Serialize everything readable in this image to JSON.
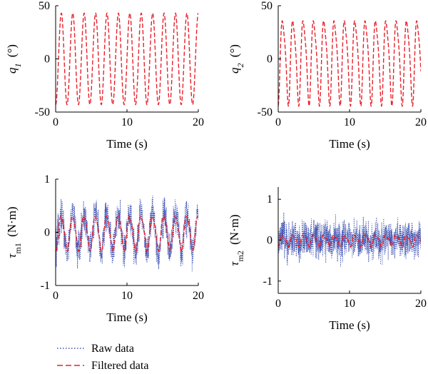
{
  "chart_data": [
    {
      "type": "line",
      "ylabel": {
        "symbol": "q",
        "sub": "1",
        "unit": "(°)"
      },
      "xlabel": "Time (s)",
      "xlim": [
        0,
        20
      ],
      "ylim": [
        -50,
        50
      ],
      "xticks": [
        0,
        10,
        20
      ],
      "yticks": [
        -50,
        0,
        50
      ],
      "series": [
        {
          "name": "Filtered data",
          "kind": "sine",
          "amplitude": 43,
          "period": 1.6,
          "phase_s": 0.4,
          "harmonic2": 0,
          "color": "#e8202a",
          "style": "dashed"
        }
      ]
    },
    {
      "type": "line",
      "ylabel": {
        "symbol": "q",
        "sub": "2",
        "unit": "(°)"
      },
      "xlabel": "Time (s)",
      "xlim": [
        0,
        20
      ],
      "ylim": [
        -50,
        50
      ],
      "xticks": [
        0,
        10,
        20
      ],
      "yticks": [
        -50,
        0,
        50
      ],
      "series": [
        {
          "name": "Filtered data",
          "kind": "sine",
          "amplitude": 38,
          "period": 1.45,
          "phase_s": 0.3,
          "harmonic2": 8,
          "color": "#e8202a",
          "style": "dashed"
        }
      ]
    },
    {
      "type": "line",
      "ylabel": {
        "symbol": "τ",
        "sub": "m1",
        "unit": "(N·m)"
      },
      "xlabel": "Time (s)",
      "xlim": [
        0,
        20
      ],
      "ylim": [
        -1,
        1
      ],
      "xticks": [
        0,
        10,
        20
      ],
      "yticks": [
        -1,
        0,
        1
      ],
      "series": [
        {
          "name": "Raw data",
          "kind": "noisy",
          "amplitude": 0.35,
          "period": 1.6,
          "phase_s": 0.4,
          "noise": 0.32,
          "samples": 900,
          "color": "#3b4fb0",
          "style": "dotted"
        },
        {
          "name": "Filtered data",
          "kind": "sine",
          "amplitude": 0.32,
          "period": 1.6,
          "phase_s": 0.4,
          "harmonic2": 0.05,
          "color": "#e8202a",
          "style": "dashed"
        }
      ]
    },
    {
      "type": "line",
      "ylabel": {
        "symbol": "τ",
        "sub": "m2",
        "unit": "(N·m)"
      },
      "xlabel": "Time (s)",
      "xlim": [
        0,
        20
      ],
      "ylim": [
        -1.3,
        1.3
      ],
      "xticks": [
        0,
        10,
        20
      ],
      "yticks": [
        -1,
        0,
        1
      ],
      "series": [
        {
          "name": "Raw data",
          "kind": "noisy",
          "amplitude": 0.08,
          "period": 1.45,
          "phase_s": 0.3,
          "noise": 0.42,
          "samples": 1100,
          "color": "#3b4fb0",
          "style": "dotted"
        },
        {
          "name": "Filtered data",
          "kind": "sine",
          "amplitude": 0.12,
          "period": 1.45,
          "phase_s": 0.3,
          "harmonic2": 0.05,
          "color": "#e8202a",
          "style": "dashed"
        }
      ]
    }
  ],
  "legend": {
    "placement": "bottom-left",
    "entries": [
      {
        "label": "Raw data",
        "color": "#3b4fb0",
        "style": "dotted"
      },
      {
        "label": "Filtered data",
        "color": "#e8202a",
        "style": "dashed"
      }
    ]
  }
}
